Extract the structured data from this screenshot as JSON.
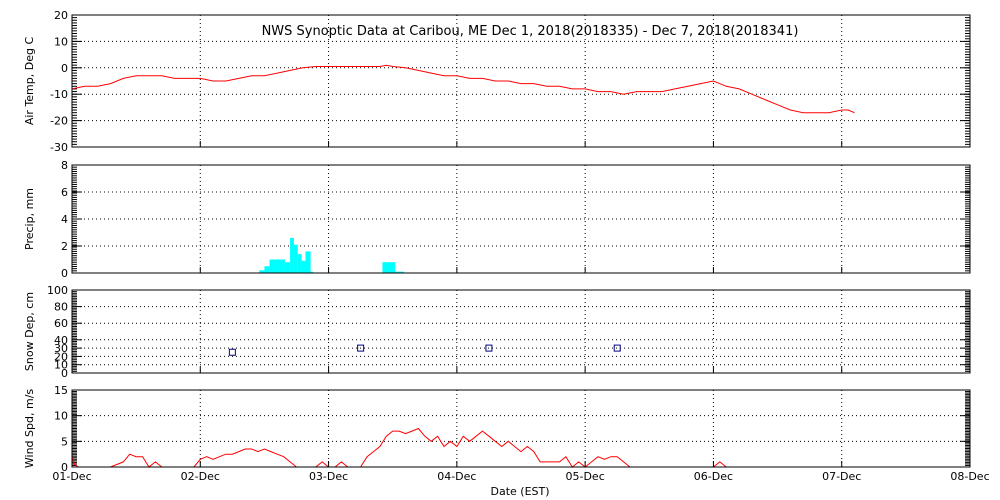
{
  "chart_data": {
    "title": "NWS Synoptic Data at Caribou, ME   Dec  1, 2018(2018335) - Dec  7, 2018(2018341)",
    "xlabel": "Date (EST)",
    "x_ticks": [
      "01-Dec",
      "02-Dec",
      "03-Dec",
      "04-Dec",
      "05-Dec",
      "06-Dec",
      "07-Dec",
      "08-Dec"
    ],
    "x_unit": "days since 01-Dec",
    "xlim": [
      0,
      7
    ],
    "colors": {
      "temp": "#ff0000",
      "precip": "#00ffff",
      "snow": "#000080",
      "wind": "#ff0000",
      "grid": "#000000"
    },
    "panels": [
      {
        "id": "temp",
        "type": "line",
        "ylabel": "Air Temp, Deg C",
        "ylim": [
          -30,
          20
        ],
        "yticks": [
          -30,
          -20,
          -10,
          0,
          10,
          20
        ],
        "grid": true,
        "series": [
          {
            "x": [
              0.0,
              0.1,
              0.2,
              0.3,
              0.4,
              0.5,
              0.6,
              0.7,
              0.8,
              0.9,
              1.0,
              1.1,
              1.2,
              1.3,
              1.4,
              1.5,
              1.6,
              1.7,
              1.8,
              1.9,
              2.0,
              2.1,
              2.2,
              2.3,
              2.4,
              2.45,
              2.5,
              2.6,
              2.7,
              2.8,
              2.9,
              3.0,
              3.1,
              3.2,
              3.3,
              3.4,
              3.5,
              3.6,
              3.7,
              3.8,
              3.9,
              4.0,
              4.1,
              4.2,
              4.3,
              4.4,
              4.5,
              4.6,
              4.7,
              4.8,
              4.9,
              5.0,
              5.1,
              5.2,
              5.3,
              5.4,
              5.5,
              5.6,
              5.7,
              5.8,
              5.9,
              6.0,
              6.05,
              6.1
            ],
            "values": [
              -8,
              -7,
              -7,
              -6,
              -4,
              -3,
              -3,
              -3,
              -4,
              -4,
              -4,
              -5,
              -5,
              -4,
              -3,
              -3,
              -2,
              -1,
              0,
              0.5,
              0.5,
              0.5,
              0.5,
              0.5,
              0.5,
              1,
              0.5,
              0,
              -1,
              -2,
              -3,
              -3,
              -4,
              -4,
              -5,
              -5,
              -6,
              -6,
              -7,
              -7,
              -8,
              -8,
              -9,
              -9,
              -10,
              -9,
              -9,
              -9,
              -8,
              -7,
              -6,
              -5,
              -7,
              -8,
              -10,
              -12,
              -14,
              -16,
              -17,
              -17,
              -17,
              -16,
              -16,
              -17
            ]
          }
        ]
      },
      {
        "id": "precip",
        "type": "bar",
        "ylabel": "Precip,  mm",
        "ylim": [
          0,
          8
        ],
        "yticks": [
          0,
          2,
          4,
          6,
          8
        ],
        "grid": true,
        "bins": [
          {
            "x": 1.46,
            "w": 0.04,
            "v": 0.2
          },
          {
            "x": 1.5,
            "w": 0.04,
            "v": 0.5
          },
          {
            "x": 1.54,
            "w": 0.12,
            "v": 1.0
          },
          {
            "x": 1.66,
            "w": 0.04,
            "v": 0.8
          },
          {
            "x": 1.7,
            "w": 0.03,
            "v": 2.6
          },
          {
            "x": 1.73,
            "w": 0.03,
            "v": 2.1
          },
          {
            "x": 1.76,
            "w": 0.03,
            "v": 1.4
          },
          {
            "x": 1.79,
            "w": 0.03,
            "v": 0.9
          },
          {
            "x": 1.82,
            "w": 0.04,
            "v": 1.6
          },
          {
            "x": 1.86,
            "w": 0.02,
            "v": 0.1
          },
          {
            "x": 2.42,
            "w": 0.1,
            "v": 0.8
          },
          {
            "x": 2.52,
            "w": 0.07,
            "v": 0.1
          }
        ]
      },
      {
        "id": "snow",
        "type": "scatter",
        "ylabel": "Snow Dep, cm",
        "ylim": [
          0,
          100
        ],
        "yticks": [
          0,
          10,
          20,
          30,
          40,
          60,
          80,
          100
        ],
        "grid": true,
        "points": [
          {
            "x": 1.25,
            "y": 25
          },
          {
            "x": 2.25,
            "y": 30
          },
          {
            "x": 3.25,
            "y": 30
          },
          {
            "x": 4.25,
            "y": 30
          }
        ]
      },
      {
        "id": "wind",
        "type": "line",
        "ylabel": "Wind Spd, m/s",
        "ylim": [
          0,
          15
        ],
        "yticks": [
          0,
          5,
          10,
          15
        ],
        "grid": true,
        "series": [
          {
            "x": [
              0.0,
              0.02,
              0.05,
              0.2,
              0.3,
              0.4,
              0.45,
              0.5,
              0.55,
              0.6,
              0.65,
              0.7,
              0.75,
              0.8,
              0.85,
              0.9,
              0.95,
              1.0,
              1.05,
              1.1,
              1.15,
              1.2,
              1.25,
              1.3,
              1.35,
              1.4,
              1.45,
              1.5,
              1.55,
              1.6,
              1.65,
              1.7,
              1.75,
              1.8,
              1.85,
              1.9,
              1.95,
              2.0,
              2.05,
              2.1,
              2.15,
              2.2,
              2.25,
              2.3,
              2.35,
              2.4,
              2.45,
              2.5,
              2.55,
              2.6,
              2.65,
              2.7,
              2.75,
              2.8,
              2.85,
              2.9,
              2.95,
              3.0,
              3.05,
              3.1,
              3.15,
              3.2,
              3.25,
              3.3,
              3.35,
              3.4,
              3.45,
              3.5,
              3.55,
              3.6,
              3.65,
              3.7,
              3.75,
              3.8,
              3.85,
              3.9,
              3.95,
              4.0,
              4.05,
              4.1,
              4.15,
              4.2,
              4.25,
              4.3,
              4.35,
              4.4,
              4.45,
              4.5,
              4.55,
              4.6,
              4.65,
              4.7,
              4.75,
              4.8,
              4.85,
              4.9,
              4.95,
              5.0,
              5.05,
              5.1
            ],
            "values": [
              2,
              0.5,
              0,
              0,
              0,
              1,
              2.5,
              2,
              2,
              0,
              1,
              0,
              0,
              0,
              0,
              0,
              0,
              1.5,
              2,
              1.5,
              2,
              2.5,
              2.5,
              3,
              3.5,
              3.5,
              3,
              3.5,
              3,
              2.5,
              2,
              1,
              0,
              0,
              0,
              0,
              1,
              0,
              0,
              1,
              0,
              0,
              0,
              2,
              3,
              4,
              6,
              7,
              7,
              6.5,
              7,
              7.5,
              6,
              5,
              6,
              4,
              5,
              4,
              6,
              5,
              6,
              7,
              6,
              5,
              4,
              5,
              4,
              3,
              4,
              3,
              1,
              1,
              1,
              1,
              2,
              0,
              1,
              0,
              1,
              2,
              1.5,
              2,
              2,
              1,
              0,
              0,
              0,
              0,
              0,
              0,
              0,
              0,
              0,
              0,
              0,
              0,
              0,
              0,
              1,
              0
            ]
          }
        ]
      }
    ]
  }
}
